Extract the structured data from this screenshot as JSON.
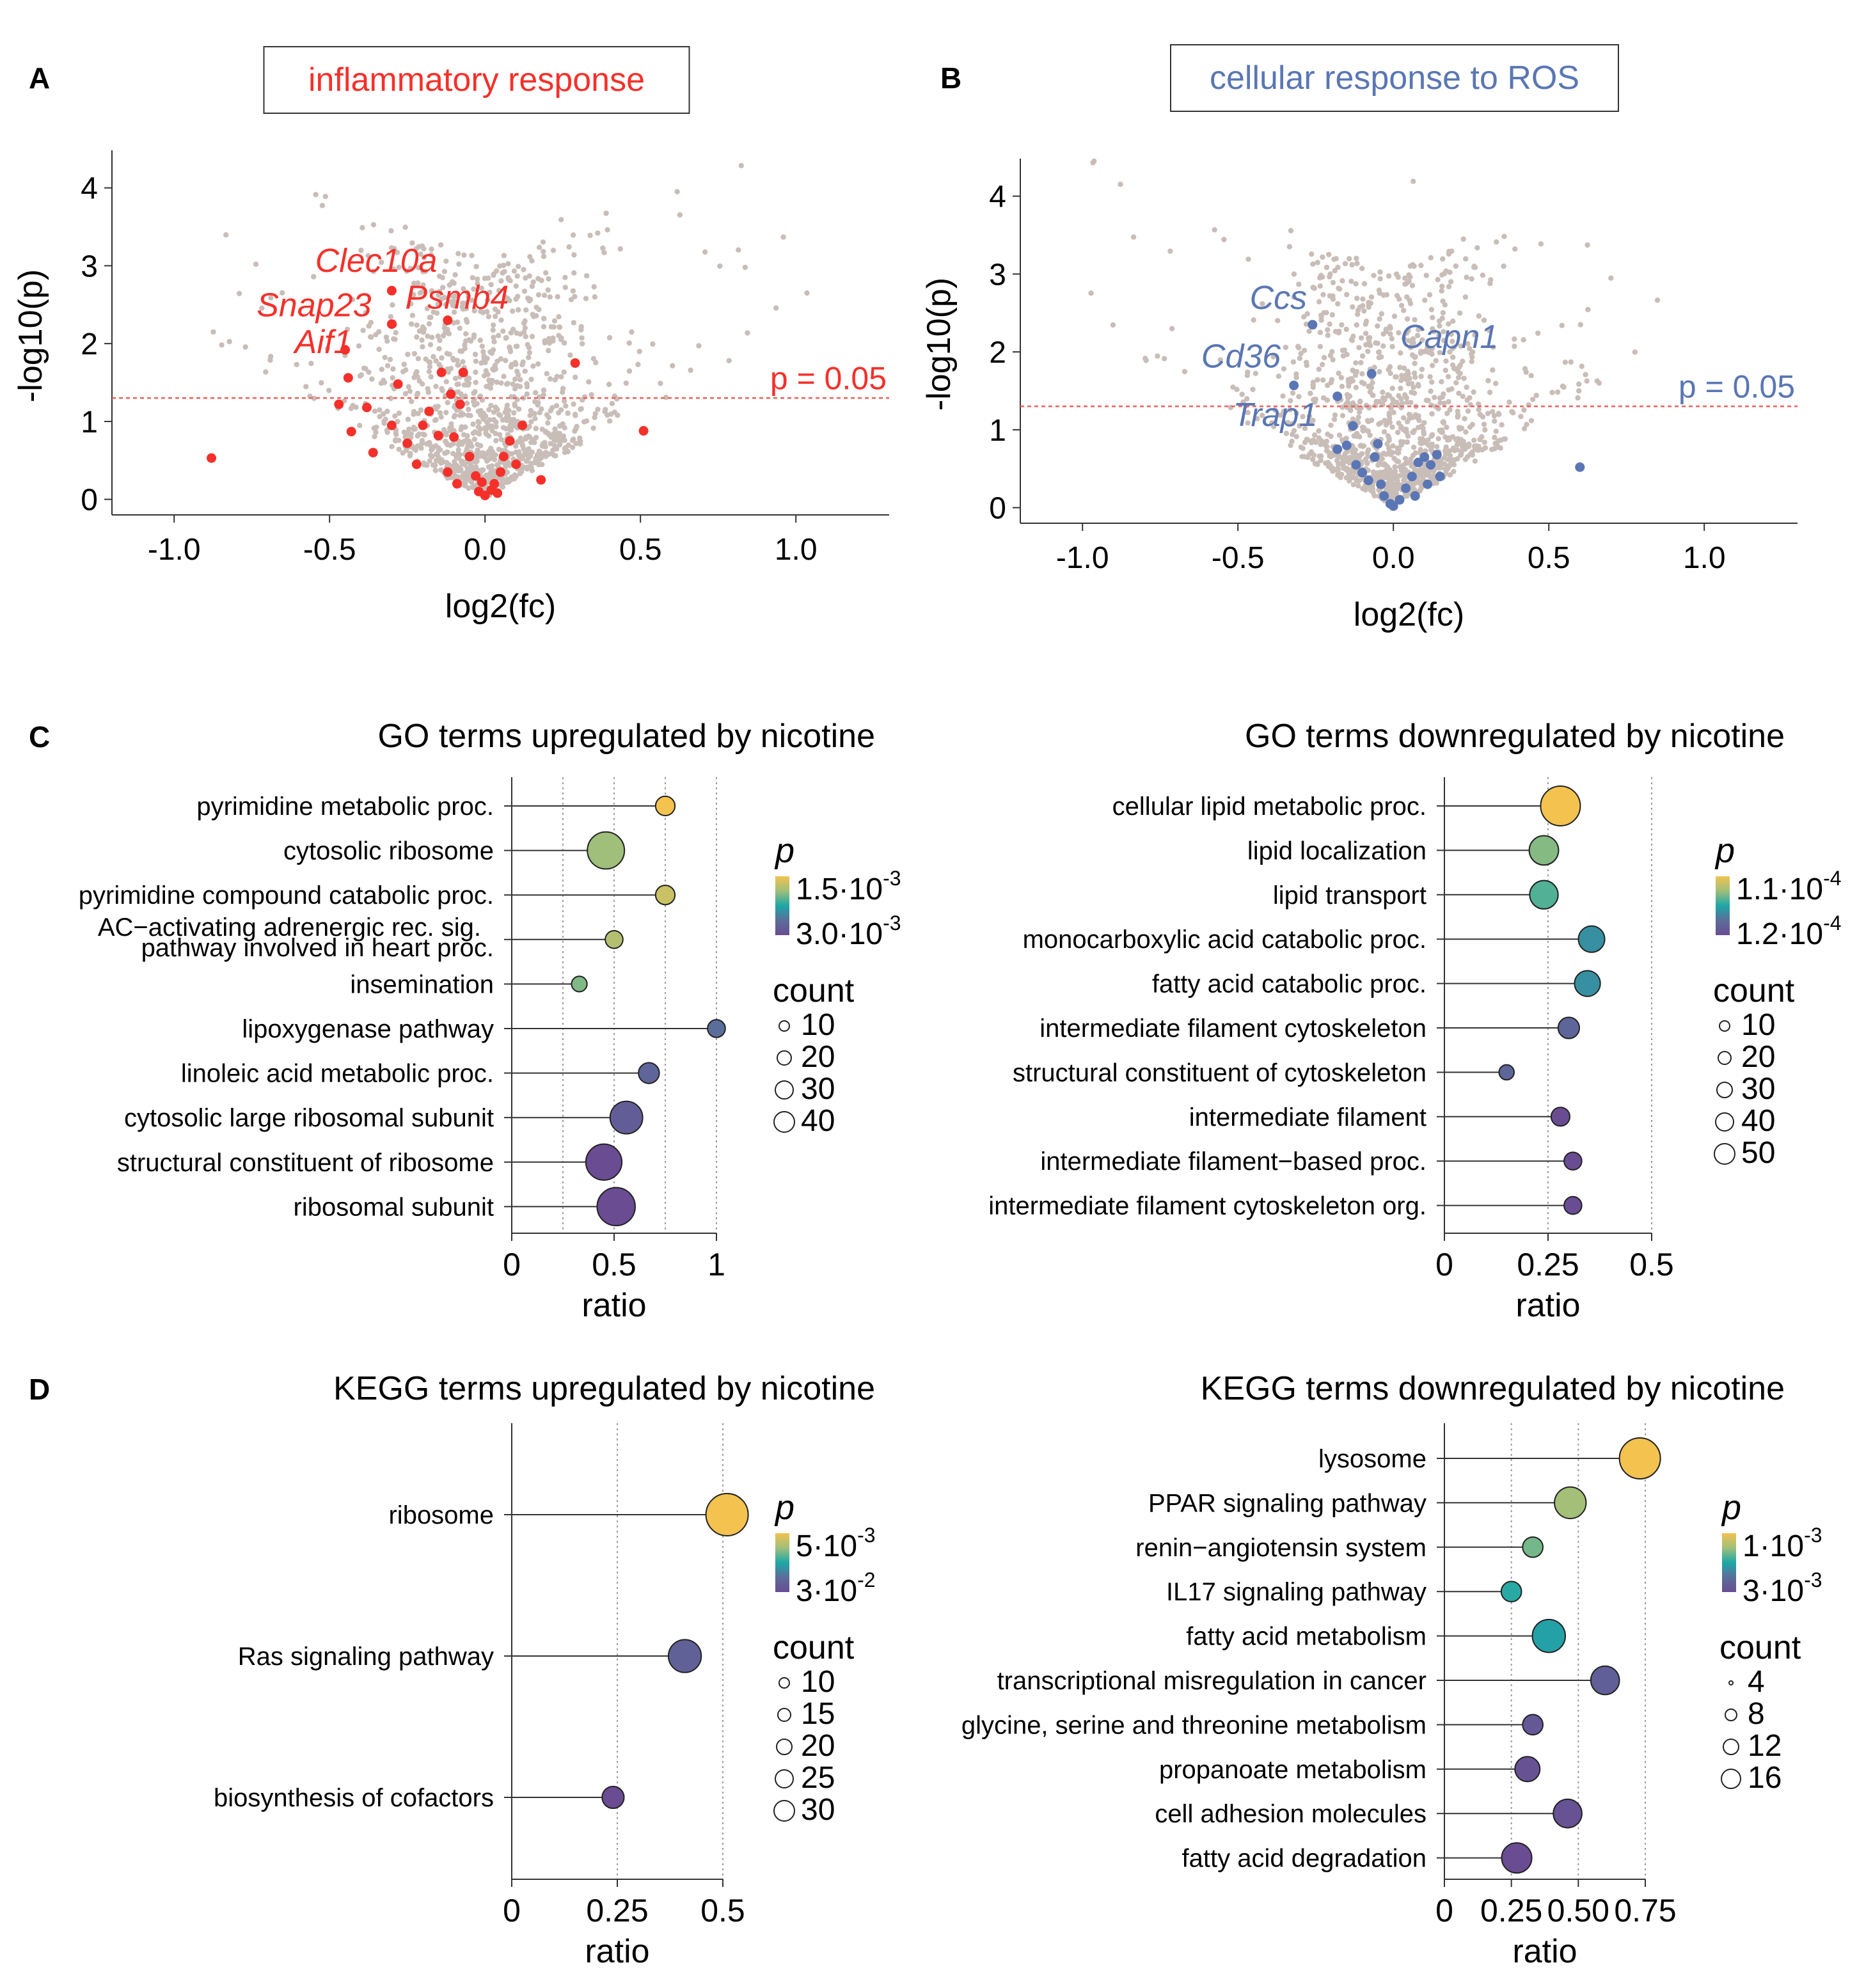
{
  "panel_labels": {
    "a": "A",
    "b": "B",
    "c": "C",
    "d": "D"
  },
  "colors": {
    "background": "#ffffff",
    "gray_dot": "#c9bdb8",
    "inflammatory_red": "#f5302a",
    "ros_blue": "#5a76b4",
    "threshold_line": "#f0605a",
    "grid": "#9a9a9a",
    "stem": "#333333",
    "viridis_gradient": [
      "#6a4c93",
      "#5b6d9a",
      "#1da7a7",
      "#9fbf7a",
      "#f3c24f"
    ]
  },
  "chart_data": [
    {
      "id": "A",
      "type": "scatter",
      "title": "inflammatory response",
      "title_color": "#f5302a",
      "xlabel": "log2(fc)",
      "ylabel": "-log10(p)",
      "xlim": [
        -1.2,
        1.3
      ],
      "ylim": [
        -0.2,
        4.4
      ],
      "xticks": [
        -1.0,
        -0.5,
        0.0,
        0.5,
        1.0
      ],
      "xtick_labels": [
        "-1.0",
        "-0.5",
        "0.0",
        "0.5",
        "1.0"
      ],
      "yticks": [
        0,
        1,
        2,
        3,
        4
      ],
      "ytick_labels": [
        "0",
        "1",
        "2",
        "3",
        "4"
      ],
      "threshold": {
        "y": 1.301,
        "label": "p = 0.05"
      },
      "background_cloud": {
        "description": "gray scatter of all proteins",
        "n": 1200,
        "max_y": 4.45
      },
      "highlight_color": "#f5302a",
      "highlighted": [
        {
          "x": -0.88,
          "y": 0.53
        },
        {
          "x": -0.45,
          "y": 1.92
        },
        {
          "x": -0.44,
          "y": 1.56
        },
        {
          "x": -0.47,
          "y": 1.22
        },
        {
          "x": -0.38,
          "y": 1.18
        },
        {
          "x": -0.43,
          "y": 0.87
        },
        {
          "x": -0.36,
          "y": 0.6
        },
        {
          "x": -0.3,
          "y": 2.68
        },
        {
          "x": -0.3,
          "y": 2.25
        },
        {
          "x": -0.28,
          "y": 1.48
        },
        {
          "x": -0.3,
          "y": 0.95
        },
        {
          "x": -0.25,
          "y": 0.72
        },
        {
          "x": -0.22,
          "y": 0.45
        },
        {
          "x": -0.18,
          "y": 1.13
        },
        {
          "x": -0.15,
          "y": 0.82
        },
        {
          "x": -0.12,
          "y": 2.3
        },
        {
          "x": -0.14,
          "y": 1.63
        },
        {
          "x": -0.11,
          "y": 1.35
        },
        {
          "x": -0.1,
          "y": 0.8
        },
        {
          "x": -0.08,
          "y": 1.22
        },
        {
          "x": -0.07,
          "y": 1.63
        },
        {
          "x": -0.05,
          "y": 0.55
        },
        {
          "x": -0.03,
          "y": 0.3
        },
        {
          "x": -0.02,
          "y": 0.1
        },
        {
          "x": 0.0,
          "y": 0.05
        },
        {
          "x": 0.02,
          "y": 0.12
        },
        {
          "x": 0.04,
          "y": 0.08
        },
        {
          "x": 0.05,
          "y": 0.35
        },
        {
          "x": 0.06,
          "y": 0.55
        },
        {
          "x": 0.08,
          "y": 0.75
        },
        {
          "x": 0.1,
          "y": 0.45
        },
        {
          "x": -0.09,
          "y": 0.2
        },
        {
          "x": -0.12,
          "y": 0.35
        },
        {
          "x": 0.12,
          "y": 0.95
        },
        {
          "x": 0.18,
          "y": 0.25
        },
        {
          "x": 0.29,
          "y": 1.75
        },
        {
          "x": 0.51,
          "y": 0.88
        },
        {
          "x": -0.2,
          "y": 0.95
        },
        {
          "x": 0.03,
          "y": 0.2
        },
        {
          "x": -0.01,
          "y": 0.22
        }
      ],
      "annotations": [
        {
          "label": "Clec10a",
          "x": -0.35,
          "y": 2.92
        },
        {
          "label": "Snap23",
          "x": -0.55,
          "y": 2.35
        },
        {
          "label": "Psmb4",
          "x": -0.09,
          "y": 2.45
        },
        {
          "label": "Aif1",
          "x": -0.52,
          "y": 1.88
        }
      ]
    },
    {
      "id": "B",
      "type": "scatter",
      "title": "cellular response to ROS",
      "title_color": "#5a76b4",
      "xlabel": "log2(fc)",
      "ylabel": "-log10(p)",
      "xlim": [
        -1.2,
        1.3
      ],
      "ylim": [
        -0.2,
        4.4
      ],
      "xticks": [
        -1.0,
        -0.5,
        0.0,
        0.5,
        1.0
      ],
      "xtick_labels": [
        "-1.0",
        "-0.5",
        "0.0",
        "0.5",
        "1.0"
      ],
      "yticks": [
        0,
        1,
        2,
        3,
        4
      ],
      "ytick_labels": [
        "0",
        "1",
        "2",
        "3",
        "4"
      ],
      "threshold": {
        "y": 1.301,
        "label": "p = 0.05"
      },
      "background_cloud": {
        "description": "gray scatter of all proteins",
        "n": 1200,
        "max_y": 4.45
      },
      "highlight_color": "#5a76b4",
      "highlighted": [
        {
          "x": -0.26,
          "y": 2.35
        },
        {
          "x": -0.32,
          "y": 1.57
        },
        {
          "x": -0.18,
          "y": 1.43
        },
        {
          "x": -0.07,
          "y": 1.72
        },
        {
          "x": -0.15,
          "y": 0.8
        },
        {
          "x": -0.12,
          "y": 0.55
        },
        {
          "x": -0.1,
          "y": 0.45
        },
        {
          "x": -0.08,
          "y": 0.35
        },
        {
          "x": -0.06,
          "y": 0.65
        },
        {
          "x": -0.04,
          "y": 0.3
        },
        {
          "x": -0.03,
          "y": 0.15
        },
        {
          "x": -0.01,
          "y": 0.05
        },
        {
          "x": 0.0,
          "y": 0.02
        },
        {
          "x": 0.02,
          "y": 0.1
        },
        {
          "x": 0.04,
          "y": 0.25
        },
        {
          "x": 0.06,
          "y": 0.4
        },
        {
          "x": 0.08,
          "y": 0.58
        },
        {
          "x": 0.1,
          "y": 0.65
        },
        {
          "x": 0.12,
          "y": 0.55
        },
        {
          "x": 0.14,
          "y": 0.68
        },
        {
          "x": 0.15,
          "y": 0.4
        },
        {
          "x": -0.13,
          "y": 1.05
        },
        {
          "x": -0.18,
          "y": 0.75
        },
        {
          "x": 0.07,
          "y": 0.15
        },
        {
          "x": 0.6,
          "y": 0.52
        },
        {
          "x": -0.05,
          "y": 0.82
        },
        {
          "x": 0.11,
          "y": 0.3
        }
      ],
      "annotations": [
        {
          "label": "Ccs",
          "x": -0.37,
          "y": 2.55
        },
        {
          "label": "Capn1",
          "x": 0.18,
          "y": 2.05
        },
        {
          "label": "Cd36",
          "x": -0.49,
          "y": 1.8
        },
        {
          "label": "Trap1",
          "x": -0.38,
          "y": 1.05
        }
      ]
    },
    {
      "id": "C-up",
      "type": "lollipop",
      "title": "GO terms upregulated by nicotine",
      "xlabel": "ratio",
      "xlim": [
        0,
        1
      ],
      "xticks": [
        0,
        0.5,
        1
      ],
      "xtick_labels": [
        "0",
        "0.5",
        "1"
      ],
      "gridlines": [
        0.25,
        0.5,
        0.75,
        1
      ],
      "categories": [
        "pyrimidine metabolic proc.",
        "cytosolic ribosome",
        "pyrimidine compound catabolic proc.",
        "AC−activating adrenergic rec. sig. pathway involved in heart proc.",
        "insemination",
        "lipoxygenase pathway",
        "linoleic acid metabolic proc.",
        "cytosolic large ribosomal subunit",
        "structural constituent of ribosome",
        "ribosomal subunit"
      ],
      "category_lines": [
        [
          "pyrimidine metabolic proc."
        ],
        [
          "cytosolic ribosome"
        ],
        [
          "pyrimidine compound catabolic proc."
        ],
        [
          "AC−activating adrenergic rec. sig.",
          "pathway involved in heart proc."
        ],
        [
          "insemination"
        ],
        [
          "lipoxygenase pathway"
        ],
        [
          "linoleic acid metabolic proc."
        ],
        [
          "cytosolic large ribosomal subunit"
        ],
        [
          "structural constituent of ribosome"
        ],
        [
          "ribosomal subunit"
        ]
      ],
      "ratio": [
        0.75,
        0.46,
        0.75,
        0.5,
        0.33,
        1.0,
        0.67,
        0.56,
        0.45,
        0.51
      ],
      "count": [
        3,
        26,
        3,
        2,
        1,
        2,
        4,
        18,
        24,
        28
      ],
      "p_value": [
        0.0015,
        0.0019,
        0.0017,
        0.0018,
        0.002,
        0.0027,
        0.0028,
        0.0029,
        0.0031,
        0.0031
      ],
      "p_legend": {
        "title": "p",
        "high": [
          "1.5·10",
          "-3"
        ],
        "low": [
          "3.0·10",
          "-3"
        ]
      },
      "count_legend": {
        "title": "count",
        "values": [
          10,
          20,
          30,
          40
        ]
      }
    },
    {
      "id": "C-down",
      "type": "lollipop",
      "title": "GO terms downregulated by nicotine",
      "xlabel": "ratio",
      "xlim": [
        0,
        0.5
      ],
      "xticks": [
        0,
        0.25,
        0.5
      ],
      "xtick_labels": [
        "0",
        "0.25",
        "0.5"
      ],
      "gridlines": [
        0.25,
        0.5
      ],
      "categories": [
        "cellular lipid metabolic proc.",
        "lipid localization",
        "lipid transport",
        "monocarboxylic acid catabolic proc.",
        "fatty acid catabolic proc.",
        "intermediate filament cytoskeleton",
        "structural constituent of cytoskeleton",
        "intermediate filament",
        "intermediate filament−based proc.",
        "intermediate filament cytoskeleton org."
      ],
      "category_lines": [
        [
          "cellular lipid metabolic proc."
        ],
        [
          "lipid localization"
        ],
        [
          "lipid transport"
        ],
        [
          "monocarboxylic acid catabolic proc."
        ],
        [
          "fatty acid catabolic proc."
        ],
        [
          "intermediate filament cytoskeleton"
        ],
        [
          "structural constituent of cytoskeleton"
        ],
        [
          "intermediate filament"
        ],
        [
          "intermediate filament−based proc."
        ],
        [
          "intermediate filament cytoskeleton org."
        ]
      ],
      "ratio": [
        0.28,
        0.24,
        0.24,
        0.355,
        0.345,
        0.3,
        0.15,
        0.28,
        0.31,
        0.31
      ],
      "count": [
        50,
        22,
        20,
        16,
        15,
        8,
        2,
        5,
        4,
        4
      ],
      "p_value": [
        0.00011,
        0.000113,
        0.000114,
        0.000116,
        0.000116,
        0.000118,
        0.000118,
        0.00012,
        0.00012,
        0.00012
      ],
      "p_legend": {
        "title": "p",
        "high": [
          "1.1·10",
          "-4"
        ],
        "low": [
          "1.2·10",
          "-4"
        ]
      },
      "count_legend": {
        "title": "count",
        "values": [
          10,
          20,
          30,
          40,
          50
        ]
      }
    },
    {
      "id": "D-up",
      "type": "lollipop",
      "title": "KEGG terms upregulated by nicotine",
      "xlabel": "ratio",
      "xlim": [
        0,
        0.5
      ],
      "xticks": [
        0,
        0.25,
        0.5
      ],
      "xtick_labels": [
        "0",
        "0.25",
        "0.5"
      ],
      "gridlines": [
        0.25,
        0.5
      ],
      "categories": [
        "ribosome",
        "Ras signaling pathway",
        "biosynthesis of cofactors"
      ],
      "category_lines": [
        [
          "ribosome"
        ],
        [
          "Ras signaling pathway"
        ],
        [
          "biosynthesis of cofactors"
        ]
      ],
      "ratio": [
        0.51,
        0.41,
        0.24
      ],
      "count": [
        30,
        15,
        4
      ],
      "p_value": [
        0.005,
        0.026,
        0.03
      ],
      "p_legend": {
        "title": "p",
        "high": [
          "5·10",
          "-3"
        ],
        "low": [
          "3·10",
          "-2"
        ]
      },
      "count_legend": {
        "title": "count",
        "values": [
          10,
          15,
          20,
          25,
          30
        ]
      }
    },
    {
      "id": "D-down",
      "type": "lollipop",
      "title": "KEGG terms downregulated by nicotine",
      "xlabel": "ratio",
      "xlim": [
        0,
        0.75
      ],
      "xticks": [
        0,
        0.25,
        0.5,
        0.75
      ],
      "xtick_labels": [
        "0",
        "0.25",
        "0.50",
        "0.75"
      ],
      "gridlines": [
        0.25,
        0.5,
        0.75
      ],
      "categories": [
        "lysosome",
        "PPAR signaling pathway",
        "renin−angiotensin system",
        "IL17 signaling pathway",
        "fatty acid metabolism",
        "transcriptional misregulation in cancer",
        "glycine, serine and threonine metabolism",
        "propanoate metabolism",
        "cell adhesion molecules",
        "fatty acid degradation"
      ],
      "category_lines": [
        [
          "lysosome"
        ],
        [
          "PPAR signaling pathway"
        ],
        [
          "renin−angiotensin system"
        ],
        [
          "IL17 signaling pathway"
        ],
        [
          "fatty acid metabolism"
        ],
        [
          "transcriptional misregulation in cancer"
        ],
        [
          "glycine, serine and threonine metabolism"
        ],
        [
          "propanoate metabolism"
        ],
        [
          "cell adhesion molecules"
        ],
        [
          "fatty acid degradation"
        ]
      ],
      "ratio": [
        0.73,
        0.47,
        0.33,
        0.25,
        0.39,
        0.6,
        0.33,
        0.31,
        0.46,
        0.27
      ],
      "count": [
        16,
        8,
        2,
        2,
        9,
        6,
        2,
        4,
        6,
        7
      ],
      "p_value": [
        0.001,
        0.0015,
        0.0017,
        0.002,
        0.0021,
        0.0028,
        0.0029,
        0.003,
        0.003,
        0.0031
      ],
      "p_legend": {
        "title": "p",
        "high": [
          "1·10",
          "-3"
        ],
        "low": [
          "3·10",
          "-3"
        ]
      },
      "count_legend": {
        "title": "count",
        "values": [
          4,
          8,
          12,
          16
        ]
      }
    }
  ]
}
